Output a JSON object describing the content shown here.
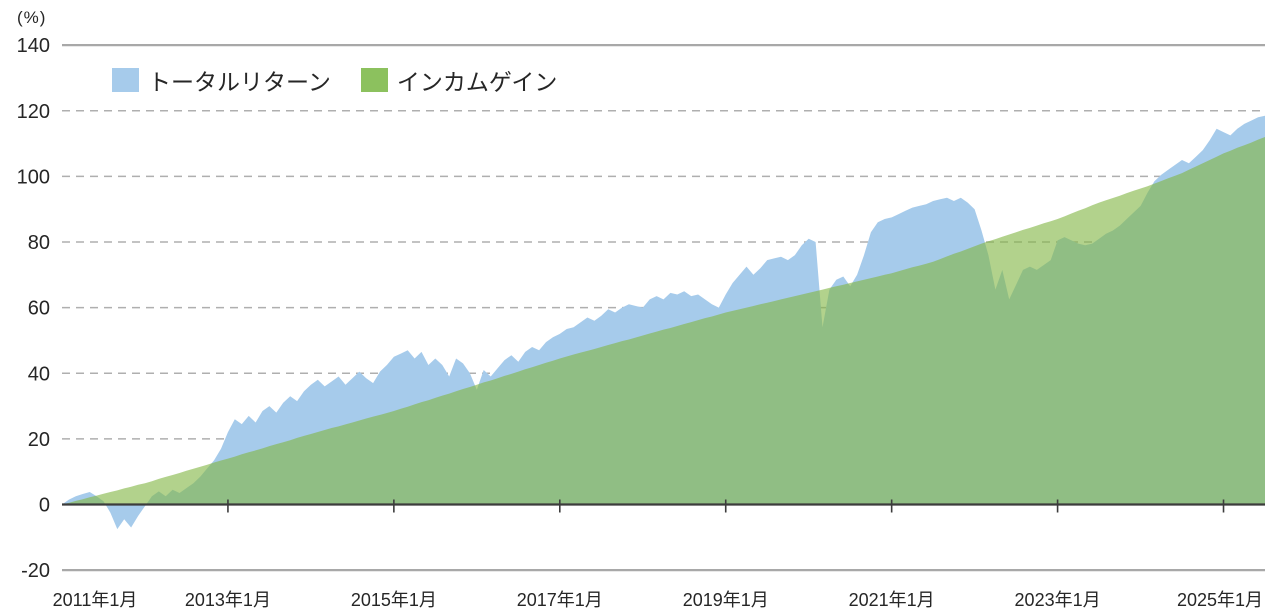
{
  "unit_label": "(%)",
  "legend": {
    "items": [
      {
        "label": "トータルリターン",
        "color": "#A6CBEB"
      },
      {
        "label": "インカムゲイン",
        "color": "#8CC15E"
      }
    ]
  },
  "chart_data": {
    "type": "area",
    "title": "",
    "unit_label": "(%)",
    "xlabel": "",
    "ylabel": "(%)",
    "ylim": [
      -20,
      140
    ],
    "grid": "horizontal dashed gridlines at 20..120, solid frame lines at 140 and -20, dark axis at 0",
    "legend_position": "top-left",
    "x_monthly_range": {
      "start": "2011-01",
      "end": "2025-07",
      "points": 175
    },
    "x_tick_labels": [
      "2011年1月",
      "2013年1月",
      "2015年1月",
      "2017年1月",
      "2019年1月",
      "2021年1月",
      "2023年1月",
      "2025年1月"
    ],
    "y_ticks": [
      140,
      120,
      100,
      80,
      60,
      40,
      20,
      0,
      -20
    ],
    "colors": {
      "total_fill": "#A6CBEB",
      "income_fill_rgba": "rgba(131,182,70,0.62)",
      "income_over_white_appearance": "#B2D28C",
      "income_over_blue_appearance": "#90C076",
      "legend_total_swatch": "#A6CBEB",
      "legend_income_swatch": "#8CC15E",
      "frame_line": "#A8A8A8",
      "grid_line": "#AFAFAF",
      "axis_line": "#3C3C3C",
      "text": "#262626"
    },
    "series": [
      {
        "name": "トータルリターン",
        "color": "#A6CBEB",
        "values": [
          0,
          1.5,
          2.5,
          3.2,
          3.8,
          2.5,
          1,
          -2.5,
          -7.5,
          -4.5,
          -7,
          -3.5,
          -0.5,
          2.5,
          4,
          2.5,
          4.5,
          3.5,
          5,
          6.5,
          8.5,
          11,
          13.5,
          17,
          22,
          26,
          24.5,
          27,
          25,
          28.5,
          30,
          28,
          31,
          33,
          31.5,
          34.5,
          36.5,
          38,
          36,
          37.5,
          39,
          36.5,
          38.5,
          40.5,
          38.5,
          37,
          40.5,
          42.5,
          45,
          46,
          47,
          44.5,
          46.5,
          42.5,
          44.5,
          42.5,
          39,
          44.5,
          43,
          40,
          35,
          41,
          39,
          41.5,
          44,
          45.5,
          43.5,
          46.5,
          48,
          47,
          49.5,
          51,
          52,
          53.5,
          54,
          55.5,
          57,
          56,
          57.5,
          59.5,
          58.5,
          60,
          61,
          60.5,
          60,
          62.5,
          63.5,
          62.5,
          64.5,
          64,
          65,
          63.5,
          64,
          62.5,
          61,
          60,
          64,
          67.5,
          70,
          72.5,
          70,
          72,
          74.5,
          75,
          75.5,
          74.5,
          76,
          79,
          81,
          80,
          54,
          65.5,
          68.5,
          69.5,
          66.5,
          70,
          76,
          83,
          86,
          87,
          87.5,
          88.5,
          89.5,
          90.5,
          91,
          91.5,
          92.5,
          93,
          93.5,
          92.5,
          93.5,
          92,
          90,
          83.5,
          76,
          65.5,
          71.5,
          62.5,
          67,
          71.5,
          72.5,
          71.5,
          73,
          74.5,
          80.5,
          81.5,
          80.5,
          79.5,
          79,
          79.5,
          81,
          82.5,
          83.5,
          85,
          87,
          89,
          91,
          95,
          98.5,
          100.5,
          102,
          103.5,
          105,
          104,
          106,
          108,
          111,
          114.5,
          113.5,
          112.5,
          114.5,
          116,
          117,
          118,
          118.5
        ]
      },
      {
        "name": "インカムゲイン",
        "color": "#8CC15E",
        "values": [
          0,
          0.5,
          1.1,
          1.6,
          2.2,
          2.7,
          3.3,
          3.8,
          4.3,
          4.9,
          5.4,
          6,
          6.5,
          7.1,
          7.8,
          8.4,
          9,
          9.6,
          10.3,
          10.9,
          11.5,
          12.1,
          12.8,
          13.4,
          14,
          14.6,
          15.3,
          15.9,
          16.5,
          17.1,
          17.8,
          18.4,
          19,
          19.6,
          20.3,
          20.9,
          21.5,
          22.1,
          22.7,
          23.3,
          23.8,
          24.4,
          25,
          25.6,
          26.2,
          26.8,
          27.3,
          27.9,
          28.5,
          29.2,
          29.8,
          30.5,
          31.2,
          31.8,
          32.5,
          33.2,
          33.8,
          34.5,
          35.2,
          35.8,
          36.5,
          37.2,
          37.8,
          38.5,
          39.2,
          39.8,
          40.5,
          41.2,
          41.8,
          42.5,
          43.2,
          43.8,
          44.5,
          45.1,
          45.7,
          46.3,
          46.8,
          47.4,
          48,
          48.6,
          49.2,
          49.8,
          50.3,
          50.9,
          51.5,
          52.1,
          52.7,
          53.3,
          53.8,
          54.4,
          55,
          55.6,
          56.2,
          56.8,
          57.3,
          57.9,
          58.5,
          59,
          59.5,
          60,
          60.5,
          61,
          61.5,
          62,
          62.5,
          63,
          63.5,
          64,
          64.5,
          65,
          65.5,
          66,
          66.5,
          67,
          67.5,
          68,
          68.5,
          69,
          69.5,
          70,
          70.5,
          71.1,
          71.7,
          72.3,
          72.8,
          73.4,
          74,
          74.8,
          75.6,
          76.4,
          77.1,
          77.9,
          78.7,
          79.5,
          80.2,
          80.9,
          81.6,
          82.3,
          83,
          83.7,
          84.3,
          85,
          85.7,
          86.3,
          87,
          87.8,
          88.7,
          89.5,
          90.3,
          91.2,
          92,
          92.7,
          93.4,
          94.1,
          94.9,
          95.6,
          96.3,
          97,
          97.8,
          98.6,
          99.4,
          100.2,
          101,
          102,
          103,
          104,
          105,
          106,
          107,
          107.8,
          108.7,
          109.5,
          110.3,
          111.2,
          112
        ]
      }
    ]
  }
}
